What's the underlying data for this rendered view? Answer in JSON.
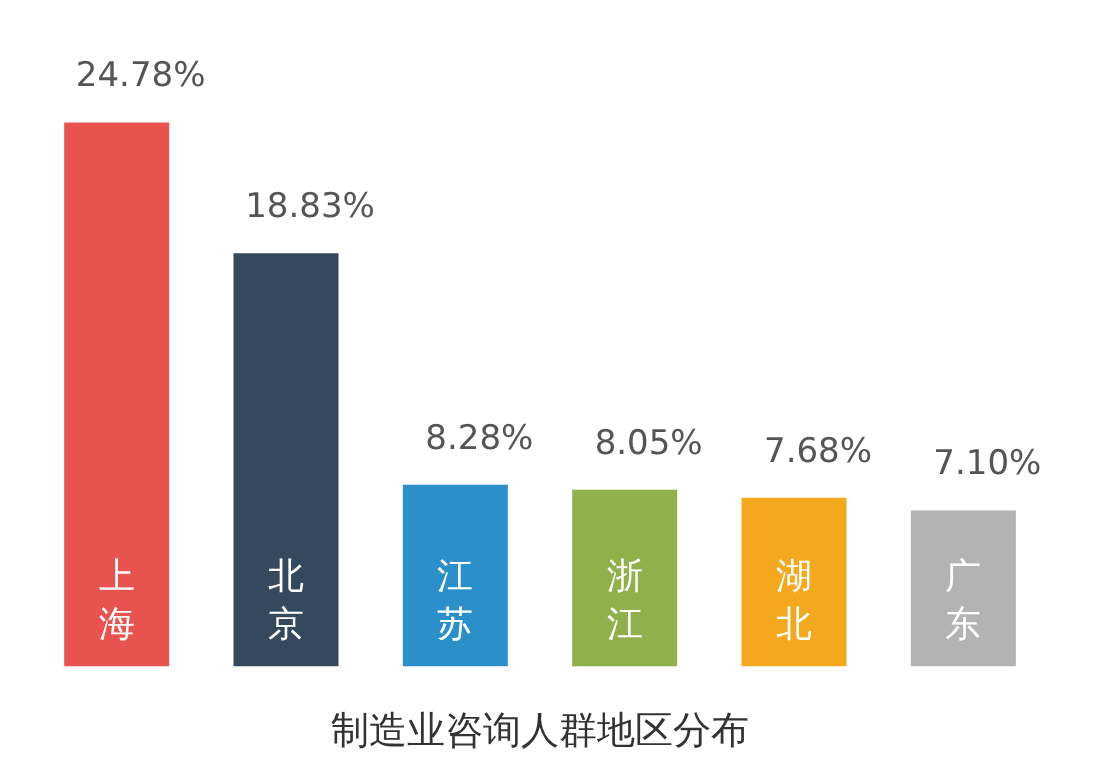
{
  "chart_data": {
    "type": "bar",
    "title": "制造业咨询人群地区分布",
    "categories": [
      "上海",
      "北京",
      "江苏",
      "浙江",
      "湖北",
      "广东"
    ],
    "values": [
      24.78,
      18.83,
      8.28,
      8.05,
      7.68,
      7.1
    ],
    "colors": [
      "#e8534f",
      "#34495e",
      "#2b8fca",
      "#8fb04a",
      "#f4a81d",
      "#b3b3b3"
    ],
    "value_labels": [
      "24.78%",
      "18.83%",
      "8.28%",
      "8.05%",
      "7.68%",
      "7.10%"
    ]
  }
}
